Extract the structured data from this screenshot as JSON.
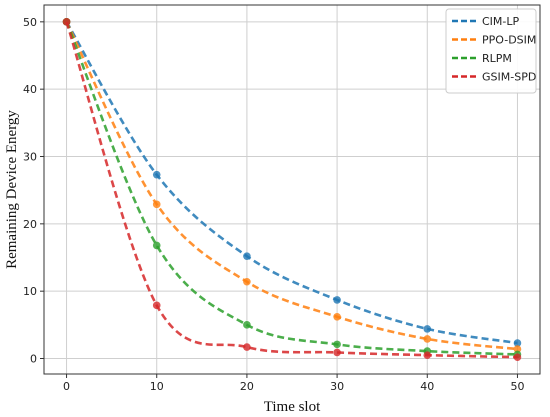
{
  "chart_data": {
    "type": "line",
    "title": "",
    "xlabel": "Time slot",
    "ylabel": "Remaining Device Energy",
    "xlim": [
      -2.5,
      52.5
    ],
    "ylim": [
      -2.3,
      52.5
    ],
    "xticks": [
      0,
      10,
      20,
      30,
      40,
      50
    ],
    "yticks": [
      0,
      10,
      20,
      30,
      40,
      50
    ],
    "grid": true,
    "legend_position": "top-right",
    "x": [
      0,
      10,
      20,
      30,
      40,
      50
    ],
    "series": [
      {
        "name": "CIM-LP",
        "color": "#1f77b4",
        "values": [
          50,
          27.3,
          15.2,
          8.7,
          4.4,
          2.3
        ]
      },
      {
        "name": "PPO-DSIM",
        "color": "#ff7f0e",
        "values": [
          50,
          22.9,
          11.4,
          6.2,
          2.9,
          1.4
        ]
      },
      {
        "name": "RLPM",
        "color": "#2ca02c",
        "values": [
          50,
          16.8,
          5.0,
          2.1,
          1.1,
          0.6
        ]
      },
      {
        "name": "GSIM-SPD",
        "color": "#d62728",
        "values": [
          50,
          7.9,
          1.7,
          0.9,
          0.5,
          0.2
        ]
      }
    ]
  }
}
